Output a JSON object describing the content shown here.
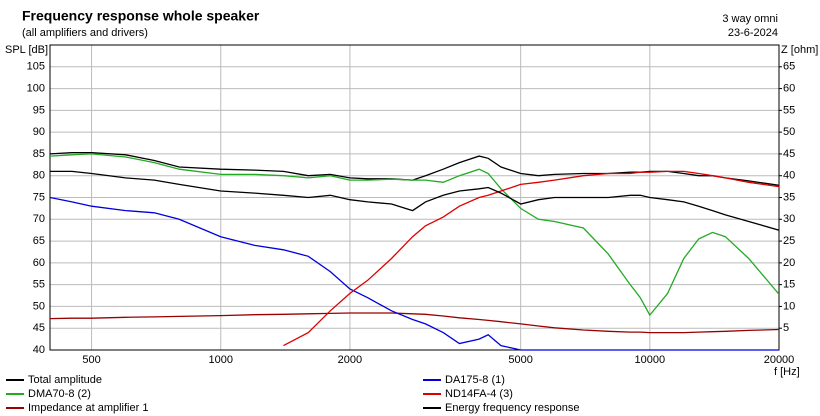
{
  "chart_data": {
    "type": "line",
    "title": "Frequency response whole speaker",
    "subtitle": "(all amplifiers and drivers)",
    "annotations": [
      "3 way omni",
      "23-6-2024"
    ],
    "ylabel": "SPL [dB]",
    "y2label": "Z [ohm]",
    "xlabel": "f [Hz]",
    "xscale": "log",
    "grid": true,
    "xlim": [
      400,
      20000
    ],
    "xticks": [
      500,
      1000,
      2000,
      5000,
      10000,
      20000
    ],
    "ylim": [
      40,
      110
    ],
    "yticks": [
      40,
      45,
      50,
      55,
      60,
      65,
      70,
      75,
      80,
      85,
      90,
      95,
      100,
      105
    ],
    "y2lim": [
      0,
      70
    ],
    "y2ticks": [
      5,
      10,
      15,
      20,
      25,
      30,
      35,
      40,
      45,
      50,
      55,
      60,
      65
    ],
    "x": [
      400,
      450,
      500,
      600,
      700,
      800,
      1000,
      1200,
      1400,
      1600,
      1800,
      2000,
      2200,
      2500,
      2800,
      3000,
      3300,
      3600,
      4000,
      4200,
      4500,
      5000,
      5500,
      6000,
      7000,
      8000,
      9000,
      9500,
      10000,
      11000,
      12000,
      13000,
      14000,
      15000,
      17000,
      20000
    ],
    "series": [
      {
        "name": "Total amplitude",
        "color": "#000000",
        "values": [
          85,
          85.3,
          85.3,
          84.8,
          83.5,
          82,
          81.5,
          81.3,
          81,
          80,
          80.3,
          79.5,
          79.3,
          79.3,
          79,
          80,
          81.5,
          83,
          84.5,
          84,
          82,
          80.5,
          80,
          80.3,
          80.5,
          80.5,
          80.8,
          80.8,
          81,
          81,
          80.5,
          80,
          80,
          79.5,
          78.8,
          77.8
        ]
      },
      {
        "name": "DMA70-8 (2)",
        "color": "#22aa22",
        "values": [
          84.5,
          84.8,
          85,
          84.3,
          83,
          81.5,
          80.3,
          80.3,
          80,
          79.5,
          80,
          79,
          79,
          79.2,
          79,
          79,
          78.5,
          80,
          81.5,
          80.5,
          77,
          72.5,
          70,
          69.5,
          68,
          62,
          55,
          52,
          48,
          53,
          61,
          65.5,
          67,
          66,
          61,
          52.8
        ]
      },
      {
        "name": "Impedance at amplifier 1",
        "color": "#990000",
        "axis": "y2",
        "values": [
          7.2,
          7.3,
          7.3,
          7.5,
          7.6,
          7.7,
          7.9,
          8.1,
          8.2,
          8.3,
          8.4,
          8.5,
          8.5,
          8.5,
          8.3,
          8.2,
          7.8,
          7.4,
          7,
          6.8,
          6.5,
          6,
          5.5,
          5.1,
          4.6,
          4.3,
          4.1,
          4.1,
          4,
          4,
          4,
          4.1,
          4.2,
          4.3,
          4.5,
          4.7
        ]
      },
      {
        "name": "DA175-8 (1)",
        "color": "#0000dd",
        "values": [
          75,
          74,
          73,
          72,
          71.5,
          70,
          66,
          64,
          63,
          61.5,
          58,
          54,
          52,
          49,
          47,
          46,
          44,
          41.5,
          42.5,
          43.5,
          41,
          40,
          40,
          40,
          40,
          40,
          40,
          40,
          40,
          40,
          40,
          40,
          40,
          40,
          40,
          40
        ]
      },
      {
        "name": "ND14FA-4 (3)",
        "color": "#dd0000",
        "values": [
          null,
          null,
          null,
          null,
          null,
          null,
          null,
          null,
          41,
          44,
          49,
          53,
          56,
          61,
          66,
          68.5,
          70.5,
          73,
          75,
          75.5,
          76.5,
          78,
          78.5,
          79,
          80,
          80.5,
          80.5,
          80.8,
          80.8,
          81,
          81,
          80.5,
          80,
          79.5,
          78.5,
          77.5
        ]
      },
      {
        "name": "Energy frequency response",
        "color": "#000000",
        "values": [
          81,
          81,
          80.5,
          79.5,
          79,
          78,
          76.5,
          76,
          75.5,
          75,
          75.5,
          74.5,
          74,
          73.5,
          72,
          74,
          75.5,
          76.5,
          77,
          77.3,
          76,
          73.5,
          74.5,
          75,
          75,
          75,
          75.5,
          75.5,
          75,
          74.5,
          74,
          73,
          72,
          71,
          69.5,
          67.5
        ]
      }
    ]
  }
}
